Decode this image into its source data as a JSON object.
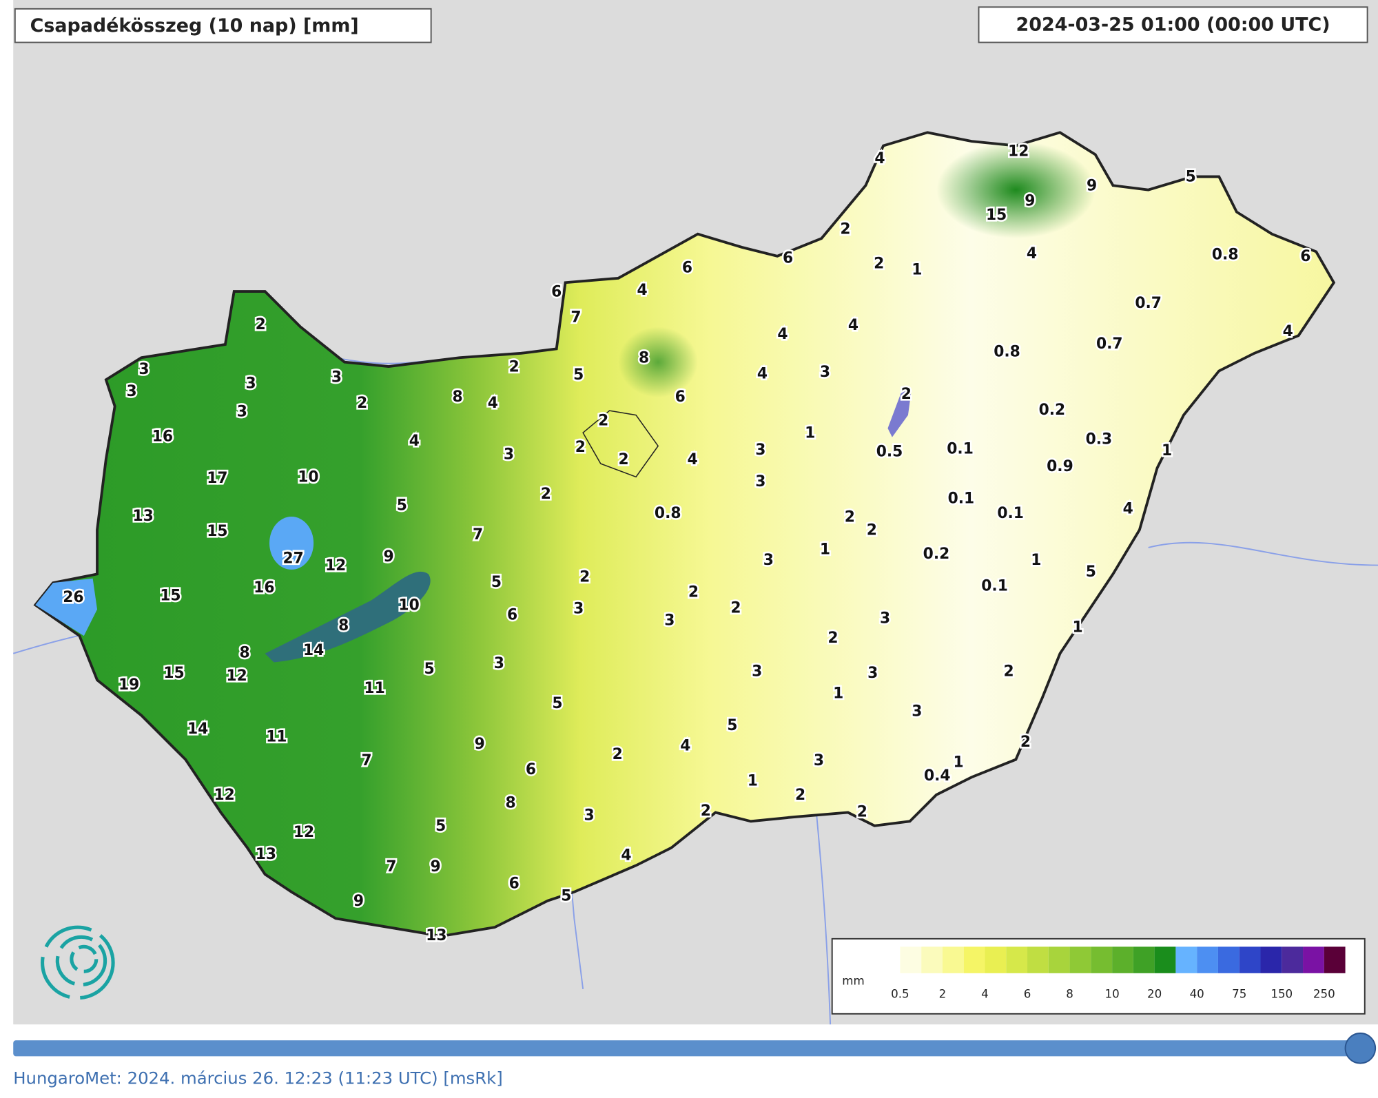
{
  "header": {
    "title": "Csapadékösszeg (10 nap) [mm]",
    "timestamp": "2024-03-25 01:00 (00:00 UTC)"
  },
  "station_values": [
    4,
    12,
    9,
    9,
    15,
    5,
    2,
    2,
    1,
    4,
    0.8,
    6,
    0.7,
    0.7,
    4,
    0.8,
    6,
    6,
    4,
    6,
    7,
    4,
    4,
    2,
    3,
    3,
    3,
    3,
    3,
    2,
    2,
    5,
    8,
    4,
    3,
    8,
    4,
    6,
    2,
    0.2,
    0.3,
    16,
    4,
    2,
    2,
    2,
    3,
    4,
    3,
    1,
    0.5,
    0.1,
    0.9,
    1,
    17,
    10,
    2,
    3,
    13,
    15,
    5,
    7,
    0.8,
    2,
    2,
    0.1,
    0.1,
    4,
    27,
    12,
    9,
    3,
    1,
    0.2,
    1,
    5,
    26,
    15,
    16,
    5,
    2,
    10,
    6,
    3,
    2,
    2,
    0.1,
    8,
    8,
    14,
    3,
    3,
    2,
    1,
    19,
    15,
    12,
    5,
    3,
    3,
    3,
    2,
    11,
    5,
    1,
    3,
    14,
    11,
    5,
    9,
    4,
    2,
    2,
    7,
    6,
    3,
    1,
    0.4,
    1,
    2,
    12,
    8,
    3,
    2,
    2,
    12,
    5,
    13,
    7,
    9,
    4,
    6,
    5,
    9,
    13
  ],
  "legend": {
    "unit": "mm",
    "labels": [
      0.5,
      2,
      4,
      6,
      8,
      10,
      20,
      40,
      75,
      150,
      250
    ],
    "colors": [
      "#ffffff",
      "#fdfde2",
      "#fbfbbc",
      "#f9f992",
      "#f5f566",
      "#e9ef52",
      "#d6e84a",
      "#c0de42",
      "#a8d43c",
      "#8fc936",
      "#76bd30",
      "#5cb02b",
      "#3fa126",
      "#1a8d1c",
      "#66b3ff",
      "#4d8ff2",
      "#3a6ae0",
      "#2e45c8",
      "#2a26aa",
      "#4c2a9c",
      "#7a12a4",
      "#5a0038"
    ]
  },
  "footer": "HungaroMet: 2024. március 26. 12:23 (11:23  UTC)  [msRk]"
}
